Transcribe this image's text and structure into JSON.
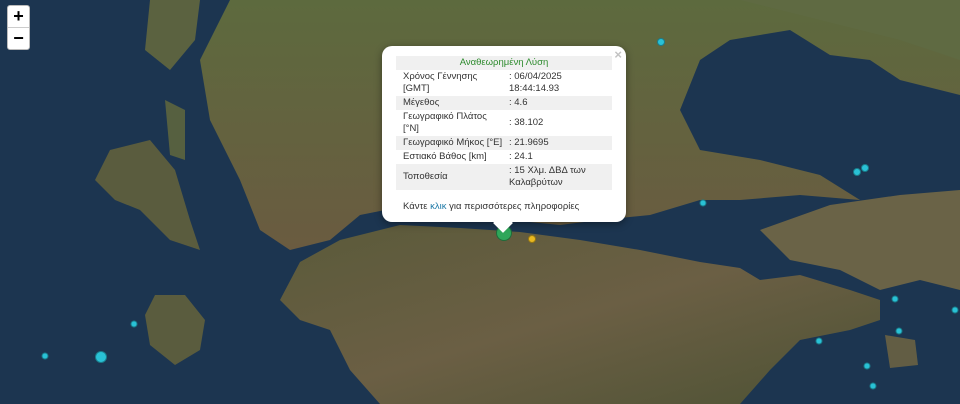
{
  "map": {
    "zoom_in_label": "+",
    "zoom_out_label": "−",
    "markers": [
      {
        "name": "selected-event",
        "color": "#2fa65a",
        "size": "large"
      },
      {
        "name": "event",
        "color": "#e8b820",
        "size": "small"
      },
      {
        "name": "event",
        "color": "#29c1d6",
        "size": "small"
      }
    ]
  },
  "popup": {
    "close_label": "×",
    "header": "Αναθεωρημένη Λύση",
    "rows": [
      {
        "label": "Χρόνος Γέννησης [GMT]",
        "value": ": 06/04/2025 18:44:14.93"
      },
      {
        "label": "Μέγεθος",
        "value": ": 4.6"
      },
      {
        "label": "Γεωγραφικό Πλάτος [°N]",
        "value": ": 38.102"
      },
      {
        "label": "Γεωγραφικό Μήκος [°E]",
        "value": ": 21.9695"
      },
      {
        "label": "Εστιακό Βάθος [km]",
        "value": ": 24.1"
      },
      {
        "label": "Τοποθεσία",
        "value": ": 15 Χλμ. ΔΒΔ των Καλαβρύτων"
      }
    ],
    "more_prefix": "Κάντε ",
    "more_link": "κλικ",
    "more_suffix": " για περισσότερες πληροφορίες"
  }
}
